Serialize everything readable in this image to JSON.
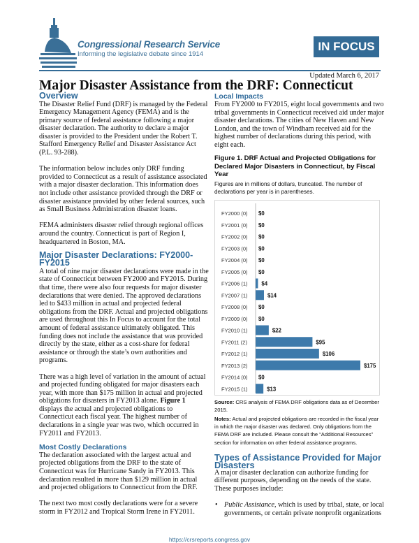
{
  "header": {
    "org_name": "Congressional Research Service",
    "tagline": "Informing the legislative debate since 1914",
    "badge": "IN FOCUS",
    "updated": "Updated March 6, 2017",
    "title": "Major Disaster Assistance from the DRF: Connecticut",
    "accent_color": "#336b96"
  },
  "left": {
    "overview_heading": "Overview",
    "overview_p1": "The Disaster Relief Fund (DRF) is managed by the Federal Emergency Management Agency (FEMA) and is the primary source of federal assistance following a major disaster declaration. The authority to declare a major disaster is provided to the President under the Robert T. Stafford Emergency Relief and Disaster Assistance Act (P.L. 93-288).",
    "overview_p2": "The information below includes only DRF funding provided to Connecticut as a result of assistance associated with a major disaster declaration. This information does not include other assistance provided through the DRF or disaster assistance provided by other federal sources, such as Small Business Administration disaster loans.",
    "overview_p3": "FEMA administers disaster relief through regional offices around the country. Connecticut is part of Region I, headquartered in Boston, MA.",
    "declarations_heading": "Major Disaster Declarations: FY2000-FY2015",
    "declarations_p1": "A total of nine major disaster declarations were made in the state of Connecticut between FY2000 and FY2015. During that time, there were also four requests for major disaster declarations that were denied. The approved declarations led to $433 million in actual and projected federal obligations from the DRF. Actual and projected obligations are used throughout this In Focus to account for the total amount of federal assistance ultimately obligated. This funding does not include the assistance that was provided directly by the state, either as a cost-share for federal assistance or through the state’s own authorities and programs.",
    "declarations_p2_a": "There was a high level of variation in the amount of actual and projected funding obligated for major disasters each year, with more than $175 million in actual and projected obligations for disasters in FY2013 alone. ",
    "declarations_p2_bold": "Figure 1",
    "declarations_p2_b": " displays the actual and projected obligations to Connecticut each fiscal year. The highest number of declarations in a single year was two, which occurred in FY2011 and FY2013.",
    "costly_heading": "Most Costly Declarations",
    "costly_p1": "The declaration associated with the largest actual and projected obligations from the DRF to the state of Connecticut was for Hurricane Sandy in FY2013. This declaration resulted in more than $129 million in actual and projected obligations to Connecticut from the DRF.",
    "costly_p2": "The next two most costly declarations were for a severe storm in FY2012 and Tropical Storm Irene in FY2011."
  },
  "right": {
    "local_heading": "Local Impacts",
    "local_p1": "From FY2000 to FY2015, eight local governments and two tribal governments in Connecticut received aid under major disaster declarations. The cities of New Haven and New London, and the town of Windham received aid for the highest number of declarations during this period, with eight each.",
    "figure_title": "Figure 1. DRF Actual and Projected Obligations for Declared Major Disasters in Connecticut, by Fiscal Year",
    "figure_subtitle": "Figures are in millions of dollars, truncated. The number of declarations per year is in parentheses.",
    "source_label": "Source:",
    "source_text": " CRS analysis of FEMA DRF obligations data as of December 2015.",
    "notes_label": "Notes:",
    "notes_text": " Actual and projected obligations are recorded in the fiscal year in which the major disaster was declared. Only obligations from the FEMA DRF are included. Please consult the “Additional Resources” section for information on other federal assistance programs.",
    "types_heading": "Types of Assistance Provided for Major Disasters",
    "types_p1": "A major disaster declaration can authorize funding for different purposes, depending on the needs of the state. These purposes include:",
    "bullet1_italic": "Public Assistance",
    "bullet1_text": ", which is used by tribal, state, or local governments, or certain private nonprofit organizations"
  },
  "chart_data": {
    "type": "bar",
    "orientation": "horizontal",
    "unit": "millions of dollars",
    "categories": [
      "FY2000 (0)",
      "FY2001 (0)",
      "FY2002 (0)",
      "FY2003 (0)",
      "FY2004 (0)",
      "FY2005 (0)",
      "FY2006 (1)",
      "FY2007 (1)",
      "FY2008 (0)",
      "FY2009 (0)",
      "FY2010 (1)",
      "FY2011 (2)",
      "FY2012 (1)",
      "FY2013 (2)",
      "FY2014 (0)",
      "FY2015 (1)"
    ],
    "values": [
      0,
      0,
      0,
      0,
      0,
      0,
      4,
      14,
      0,
      0,
      22,
      95,
      106,
      175,
      0,
      13
    ],
    "data_labels": [
      "$0",
      "$0",
      "$0",
      "$0",
      "$0",
      "$0",
      "$4",
      "$14",
      "$0",
      "$0",
      "$22",
      "$95",
      "$106",
      "$175",
      "$0",
      "$13"
    ],
    "bar_color": "#3d7aab",
    "grid": false,
    "xlim": [
      0,
      175
    ]
  },
  "footer": {
    "url": "https://crsreports.congress.gov"
  }
}
